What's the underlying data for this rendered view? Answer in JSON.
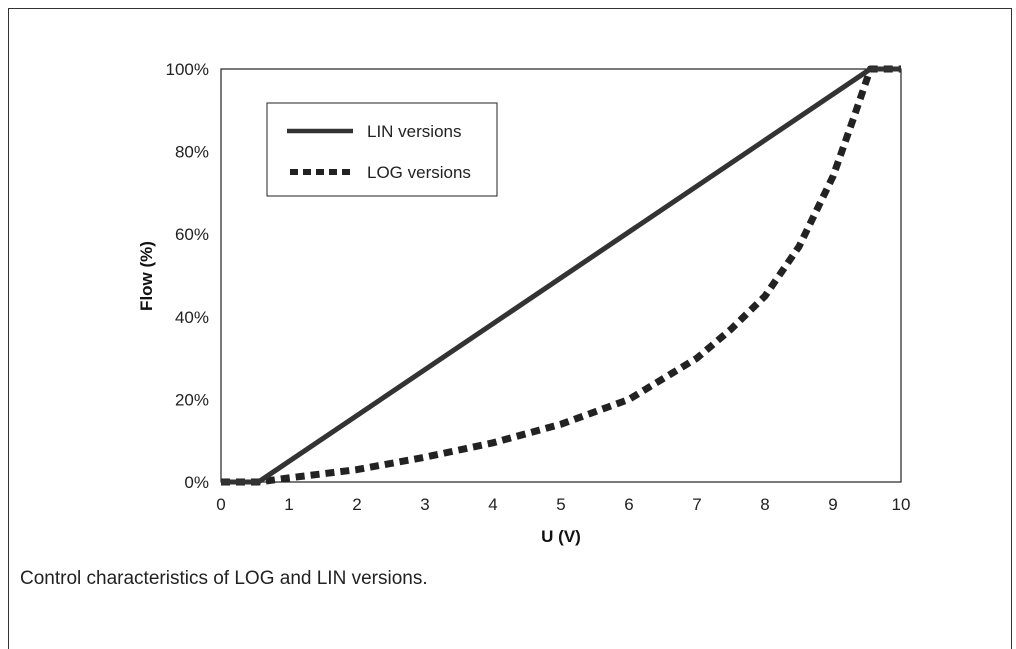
{
  "caption": "Control characteristics of LOG and LIN versions.",
  "chart_data": {
    "type": "line",
    "xlabel": "U (V)",
    "ylabel": "Flow (%)",
    "xlim": [
      0,
      10
    ],
    "ylim": [
      0,
      100
    ],
    "x_ticks": [
      "0",
      "1",
      "2",
      "3",
      "4",
      "5",
      "6",
      "7",
      "8",
      "9",
      "10"
    ],
    "y_ticks": [
      "0%",
      "20%",
      "40%",
      "60%",
      "80%",
      "100%"
    ],
    "grid": false,
    "legend_position": "top-left",
    "series": [
      {
        "name": "LIN versions",
        "style": "solid",
        "color": "#333333",
        "x": [
          0,
          0.55,
          9.55,
          10
        ],
        "y": [
          0,
          0,
          100,
          100
        ]
      },
      {
        "name": "LOG versions",
        "style": "dashed",
        "color": "#222222",
        "x": [
          0,
          0.55,
          1,
          2,
          3,
          4,
          5,
          6,
          7,
          7.5,
          8,
          8.5,
          9,
          9.3,
          9.55,
          10
        ],
        "y": [
          0,
          0,
          1,
          3,
          6,
          9.5,
          14,
          20,
          30,
          37,
          45,
          57,
          74,
          88,
          100,
          100
        ]
      }
    ]
  }
}
